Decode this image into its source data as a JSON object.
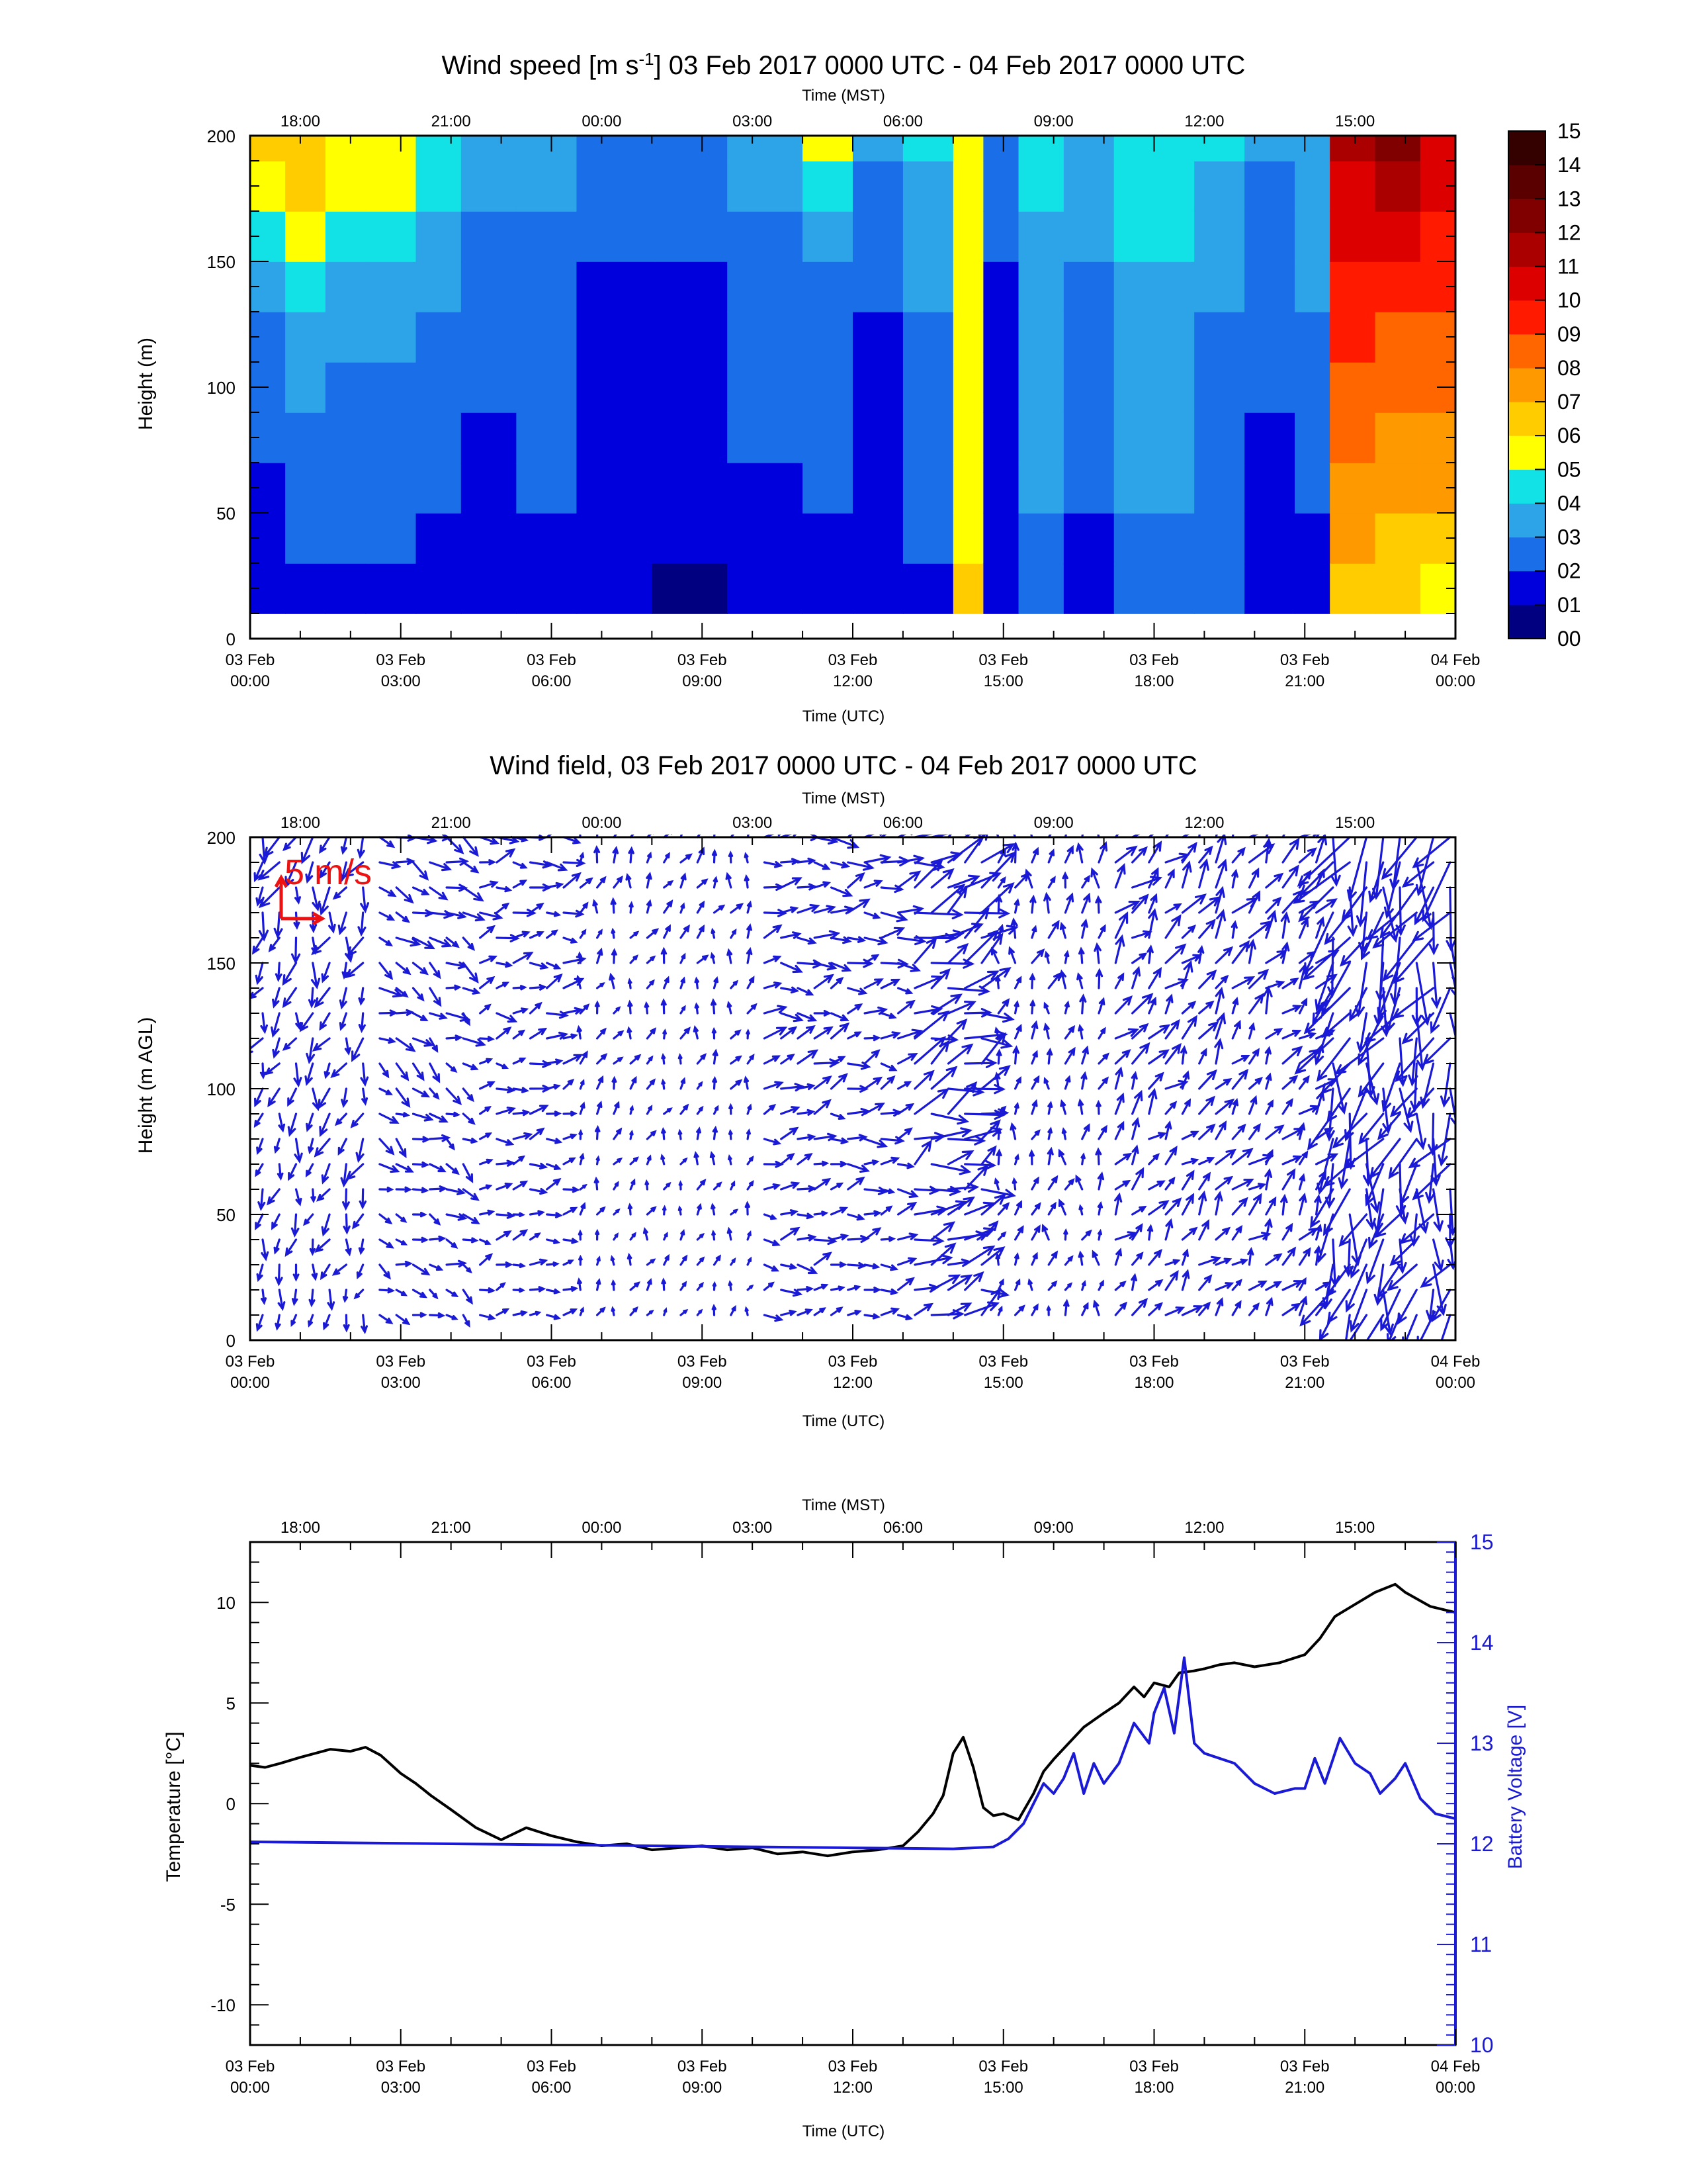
{
  "chart_data": [
    {
      "type": "heatmap",
      "title_prefix": "Wind speed [m s",
      "title_exp": "-1",
      "title_suffix": "] 03 Feb 2017 0000 UTC - 04 Feb 2017 0000 UTC",
      "top_axis_label": "Time (MST)",
      "top_ticks": [
        "18:00",
        "21:00",
        "00:00",
        "03:00",
        "06:00",
        "09:00",
        "12:00",
        "15:00"
      ],
      "top_ticks_utc_hours": [
        1,
        4,
        7,
        10,
        13,
        16,
        19,
        22
      ],
      "xlabel": "Time (UTC)",
      "x_ticks_hours": [
        0,
        3,
        6,
        9,
        12,
        15,
        18,
        21,
        24
      ],
      "x_tick_labels": [
        [
          "03 Feb",
          "00:00"
        ],
        [
          "03 Feb",
          "03:00"
        ],
        [
          "03 Feb",
          "06:00"
        ],
        [
          "03 Feb",
          "09:00"
        ],
        [
          "03 Feb",
          "12:00"
        ],
        [
          "03 Feb",
          "15:00"
        ],
        [
          "03 Feb",
          "18:00"
        ],
        [
          "03 Feb",
          "21:00"
        ],
        [
          "04 Feb",
          "00:00"
        ]
      ],
      "xlim_hours": [
        0,
        24
      ],
      "ylabel": "Height (m)",
      "ylim": [
        0,
        200
      ],
      "y_ticks": [
        0,
        50,
        100,
        150,
        200
      ],
      "heights_m": [
        10,
        30,
        50,
        70,
        90,
        110,
        130,
        150,
        170,
        190,
        200
      ],
      "time_segments": [
        {
          "t0": 0.0,
          "t1": 0.7,
          "speeds": [
            1.2,
            1.5,
            1.8,
            2.0,
            2.3,
            2.6,
            3.0,
            4.0,
            5.5,
            6.0,
            6.0
          ]
        },
        {
          "t0": 0.7,
          "t1": 1.5,
          "speeds": [
            1.5,
            2.0,
            2.3,
            2.6,
            3.0,
            3.4,
            4.2,
            5.0,
            6.5,
            6.8,
            7.0
          ]
        },
        {
          "t0": 1.5,
          "t1": 2.3,
          "speeds": [
            1.3,
            2.0,
            2.2,
            2.5,
            2.8,
            3.0,
            3.5,
            4.2,
            5.0,
            5.5,
            6.0
          ]
        },
        {
          "t0": 2.3,
          "t1": 3.3,
          "speeds": [
            1.8,
            2.2,
            2.3,
            2.4,
            2.6,
            3.0,
            3.5,
            4.5,
            5.0,
            5.5,
            5.5
          ]
        },
        {
          "t0": 3.3,
          "t1": 4.2,
          "speeds": [
            1.5,
            1.8,
            2.0,
            2.2,
            2.4,
            2.6,
            3.0,
            3.5,
            4.0,
            4.5,
            5.0
          ]
        },
        {
          "t0": 4.2,
          "t1": 5.3,
          "speeds": [
            1.2,
            1.5,
            1.6,
            1.8,
            2.0,
            2.2,
            2.4,
            2.6,
            3.0,
            3.5,
            3.6
          ]
        },
        {
          "t0": 5.3,
          "t1": 6.5,
          "speeds": [
            1.5,
            1.8,
            2.0,
            2.2,
            2.3,
            2.4,
            2.5,
            2.7,
            3.0,
            3.5,
            4.0
          ]
        },
        {
          "t0": 6.5,
          "t1": 8.0,
          "speeds": [
            1.0,
            1.2,
            1.3,
            1.4,
            1.5,
            1.6,
            1.8,
            2.0,
            2.3,
            2.6,
            3.0
          ]
        },
        {
          "t0": 8.0,
          "t1": 9.5,
          "speeds": [
            0.8,
            1.0,
            1.2,
            1.3,
            1.4,
            1.5,
            1.7,
            2.0,
            2.3,
            2.5,
            2.6
          ]
        },
        {
          "t0": 9.5,
          "t1": 11.0,
          "speeds": [
            1.2,
            1.5,
            1.8,
            2.0,
            2.2,
            2.4,
            2.6,
            2.8,
            3.0,
            3.3,
            3.5
          ]
        },
        {
          "t0": 11.0,
          "t1": 12.0,
          "speeds": [
            1.5,
            1.8,
            2.0,
            2.2,
            2.4,
            2.6,
            2.8,
            3.5,
            4.5,
            5.0,
            5.5
          ]
        },
        {
          "t0": 12.0,
          "t1": 13.0,
          "speeds": [
            1.0,
            1.2,
            1.3,
            1.5,
            1.6,
            1.8,
            2.0,
            2.3,
            2.6,
            3.0,
            3.2
          ]
        },
        {
          "t0": 13.0,
          "t1": 14.0,
          "speeds": [
            1.8,
            2.0,
            2.2,
            2.4,
            2.6,
            2.8,
            3.0,
            3.2,
            3.5,
            4.0,
            4.2
          ]
        },
        {
          "t0": 14.0,
          "t1": 14.6,
          "speeds": [
            6.5,
            5.8,
            5.5,
            5.4,
            5.3,
            5.2,
            5.3,
            5.4,
            5.6,
            5.8,
            6.0
          ]
        },
        {
          "t0": 14.6,
          "t1": 15.3,
          "speeds": [
            1.0,
            1.2,
            1.4,
            1.5,
            1.6,
            1.7,
            1.8,
            2.0,
            2.2,
            2.4,
            2.5
          ]
        },
        {
          "t0": 15.3,
          "t1": 16.2,
          "speeds": [
            2.5,
            2.8,
            3.0,
            3.2,
            3.3,
            3.4,
            3.5,
            3.8,
            4.2,
            4.4,
            4.5
          ]
        },
        {
          "t0": 16.2,
          "t1": 17.2,
          "speeds": [
            1.5,
            1.8,
            2.0,
            2.2,
            2.4,
            2.6,
            2.8,
            3.0,
            3.3,
            3.6,
            3.8
          ]
        },
        {
          "t0": 17.2,
          "t1": 18.8,
          "speeds": [
            2.5,
            2.8,
            3.0,
            3.2,
            3.4,
            3.6,
            3.8,
            4.0,
            4.2,
            4.4,
            4.5
          ]
        },
        {
          "t0": 18.8,
          "t1": 19.8,
          "speeds": [
            2.0,
            2.2,
            2.4,
            2.5,
            2.6,
            2.8,
            3.0,
            3.2,
            3.6,
            4.0,
            4.2
          ]
        },
        {
          "t0": 19.8,
          "t1": 20.8,
          "speeds": [
            1.2,
            1.5,
            1.6,
            1.8,
            2.0,
            2.2,
            2.4,
            2.6,
            2.8,
            3.0,
            3.2
          ]
        },
        {
          "t0": 20.8,
          "t1": 21.5,
          "speeds": [
            1.5,
            1.8,
            2.0,
            2.2,
            2.5,
            2.8,
            3.0,
            3.2,
            3.5,
            3.8,
            4.0
          ]
        },
        {
          "t0": 21.5,
          "t1": 22.4,
          "speeds": [
            6.5,
            7.0,
            7.5,
            8.0,
            8.5,
            9.0,
            9.5,
            10.0,
            10.5,
            11.0,
            11.0
          ]
        },
        {
          "t0": 22.4,
          "t1": 23.3,
          "speeds": [
            6.0,
            6.5,
            7.0,
            7.5,
            8.0,
            8.5,
            9.5,
            10.5,
            11.5,
            12.0,
            12.5
          ]
        },
        {
          "t0": 23.3,
          "t1": 24.0,
          "speeds": [
            5.5,
            6.0,
            7.0,
            7.5,
            8.0,
            8.5,
            9.0,
            9.5,
            10.0,
            10.5,
            11.0
          ]
        }
      ],
      "colorbar_labels": [
        "00",
        "01",
        "02",
        "03",
        "04",
        "05",
        "06",
        "07",
        "08",
        "09",
        "10",
        "11",
        "12",
        "13",
        "14",
        "15"
      ],
      "colorbar_colors": [
        "#000080",
        "#0000dd",
        "#1a6ee8",
        "#2ea4e8",
        "#12e2e6",
        "#ffff00",
        "#ffcc00",
        "#ff9900",
        "#ff6600",
        "#ff1a00",
        "#dd0000",
        "#aa0000",
        "#800000",
        "#5a0000",
        "#350000"
      ]
    },
    {
      "type": "quiver",
      "title": "Wind field, 03 Feb 2017 0000 UTC - 04 Feb 2017 0000 UTC",
      "top_axis_label": "Time (MST)",
      "top_ticks": [
        "18:00",
        "21:00",
        "00:00",
        "03:00",
        "06:00",
        "09:00",
        "12:00",
        "15:00"
      ],
      "xlabel": "Time (UTC)",
      "x_tick_labels": [
        [
          "03 Feb",
          "00:00"
        ],
        [
          "03 Feb",
          "03:00"
        ],
        [
          "03 Feb",
          "06:00"
        ],
        [
          "03 Feb",
          "09:00"
        ],
        [
          "03 Feb",
          "12:00"
        ],
        [
          "03 Feb",
          "15:00"
        ],
        [
          "03 Feb",
          "18:00"
        ],
        [
          "03 Feb",
          "21:00"
        ],
        [
          "04 Feb",
          "00:00"
        ]
      ],
      "xlim_hours": [
        0,
        24
      ],
      "ylabel": "Height (m AGL)",
      "ylim": [
        0,
        200
      ],
      "y_ticks": [
        0,
        50,
        100,
        150,
        200
      ],
      "reference_label": "5 m/s",
      "reference_speed_ms": 5,
      "arrow_color": "#1a1ad6",
      "reference_color": "#ee1111",
      "samples": {
        "time_step_hours": 0.333,
        "height_step_m": 10,
        "height_min_m": 10,
        "height_max_m": 200
      },
      "regimes": [
        {
          "t0": 0.0,
          "t1": 2.5,
          "dir_deg": 200,
          "speed": 2.2
        },
        {
          "t0": 2.5,
          "t1": 4.5,
          "dir_deg": 120,
          "speed": 2.0
        },
        {
          "t0": 4.5,
          "t1": 6.5,
          "dir_deg": 80,
          "speed": 1.8
        },
        {
          "t0": 6.5,
          "t1": 10.0,
          "dir_deg": 20,
          "speed": 1.2
        },
        {
          "t0": 10.0,
          "t1": 13.0,
          "dir_deg": 80,
          "speed": 2.2
        },
        {
          "t0": 13.0,
          "t1": 14.8,
          "dir_deg": 70,
          "speed": 4.0
        },
        {
          "t0": 14.8,
          "t1": 17.0,
          "dir_deg": 10,
          "speed": 1.6
        },
        {
          "t0": 17.0,
          "t1": 21.5,
          "dir_deg": 40,
          "speed": 2.4
        },
        {
          "t0": 21.5,
          "t1": 24.0,
          "dir_deg": 200,
          "speed": 5.5
        }
      ]
    },
    {
      "type": "line",
      "top_axis_label": "Time (MST)",
      "top_ticks": [
        "18:00",
        "21:00",
        "00:00",
        "03:00",
        "06:00",
        "09:00",
        "12:00",
        "15:00"
      ],
      "xlabel": "Time (UTC)",
      "x_tick_labels": [
        [
          "03 Feb",
          "00:00"
        ],
        [
          "03 Feb",
          "03:00"
        ],
        [
          "03 Feb",
          "06:00"
        ],
        [
          "03 Feb",
          "09:00"
        ],
        [
          "03 Feb",
          "12:00"
        ],
        [
          "03 Feb",
          "15:00"
        ],
        [
          "03 Feb",
          "18:00"
        ],
        [
          "03 Feb",
          "21:00"
        ],
        [
          "04 Feb",
          "00:00"
        ]
      ],
      "xlim_hours": [
        0,
        24
      ],
      "ylabel": "Temperature [°C]",
      "ylim": [
        -12,
        13
      ],
      "y_ticks": [
        -10,
        -5,
        0,
        5,
        10
      ],
      "y2label": "Battery Voltage [V]",
      "y2lim": [
        10,
        15
      ],
      "y2_ticks": [
        10,
        11,
        12,
        13,
        14,
        15
      ],
      "y2_color": "#1a1ad6",
      "series": [
        {
          "color": "#000000",
          "axis": "left",
          "x": [
            0,
            0.3,
            0.6,
            1,
            1.3,
            1.6,
            2,
            2.3,
            2.6,
            3,
            3.3,
            3.6,
            4,
            4.5,
            5,
            5.5,
            6,
            6.5,
            7,
            7.5,
            8,
            8.5,
            9,
            9.5,
            10,
            10.5,
            11,
            11.5,
            12,
            12.5,
            13,
            13.3,
            13.6,
            13.8,
            14.0,
            14.2,
            14.4,
            14.6,
            14.8,
            15.0,
            15.3,
            15.6,
            15.8,
            16.0,
            16.3,
            16.6,
            17.0,
            17.3,
            17.6,
            17.8,
            18.0,
            18.3,
            18.5,
            18.8,
            19.0,
            19.3,
            19.6,
            20.0,
            20.5,
            21.0,
            21.3,
            21.6,
            22.0,
            22.4,
            22.8,
            23.0,
            23.5,
            24.0
          ],
          "y": [
            1.9,
            1.8,
            2.0,
            2.3,
            2.5,
            2.7,
            2.6,
            2.8,
            2.4,
            1.5,
            1.0,
            0.4,
            -0.3,
            -1.2,
            -1.8,
            -1.2,
            -1.6,
            -1.9,
            -2.1,
            -2.0,
            -2.3,
            -2.2,
            -2.1,
            -2.3,
            -2.2,
            -2.5,
            -2.4,
            -2.6,
            -2.4,
            -2.3,
            -2.1,
            -1.4,
            -0.5,
            0.4,
            2.5,
            3.3,
            1.8,
            -0.2,
            -0.6,
            -0.5,
            -0.8,
            0.5,
            1.6,
            2.2,
            3.0,
            3.8,
            4.5,
            5.0,
            5.8,
            5.3,
            6.0,
            5.8,
            6.5,
            6.6,
            6.7,
            6.9,
            7.0,
            6.8,
            7.0,
            7.4,
            8.2,
            9.3,
            9.9,
            10.5,
            10.9,
            10.5,
            9.8,
            9.5
          ]
        },
        {
          "color": "#1a1ad6",
          "axis": "right",
          "x": [
            0,
            2,
            4,
            6,
            8,
            10,
            12,
            14,
            14.8,
            15.1,
            15.4,
            15.6,
            15.8,
            16.0,
            16.2,
            16.4,
            16.6,
            16.8,
            17.0,
            17.3,
            17.6,
            17.9,
            18.0,
            18.2,
            18.4,
            18.6,
            18.8,
            19.0,
            19.3,
            19.6,
            20.0,
            20.4,
            20.8,
            21.0,
            21.2,
            21.4,
            21.7,
            22.0,
            22.3,
            22.5,
            22.8,
            23.0,
            23.3,
            23.6,
            24.0
          ],
          "y": [
            12.02,
            12.01,
            12.0,
            11.99,
            11.98,
            11.97,
            11.96,
            11.95,
            11.97,
            12.05,
            12.2,
            12.4,
            12.6,
            12.5,
            12.65,
            12.9,
            12.5,
            12.8,
            12.6,
            12.8,
            13.2,
            13.0,
            13.3,
            13.55,
            13.1,
            13.85,
            13.0,
            12.9,
            12.85,
            12.8,
            12.6,
            12.5,
            12.55,
            12.55,
            12.85,
            12.6,
            13.05,
            12.8,
            12.7,
            12.5,
            12.65,
            12.8,
            12.45,
            12.3,
            12.25
          ]
        }
      ]
    }
  ]
}
